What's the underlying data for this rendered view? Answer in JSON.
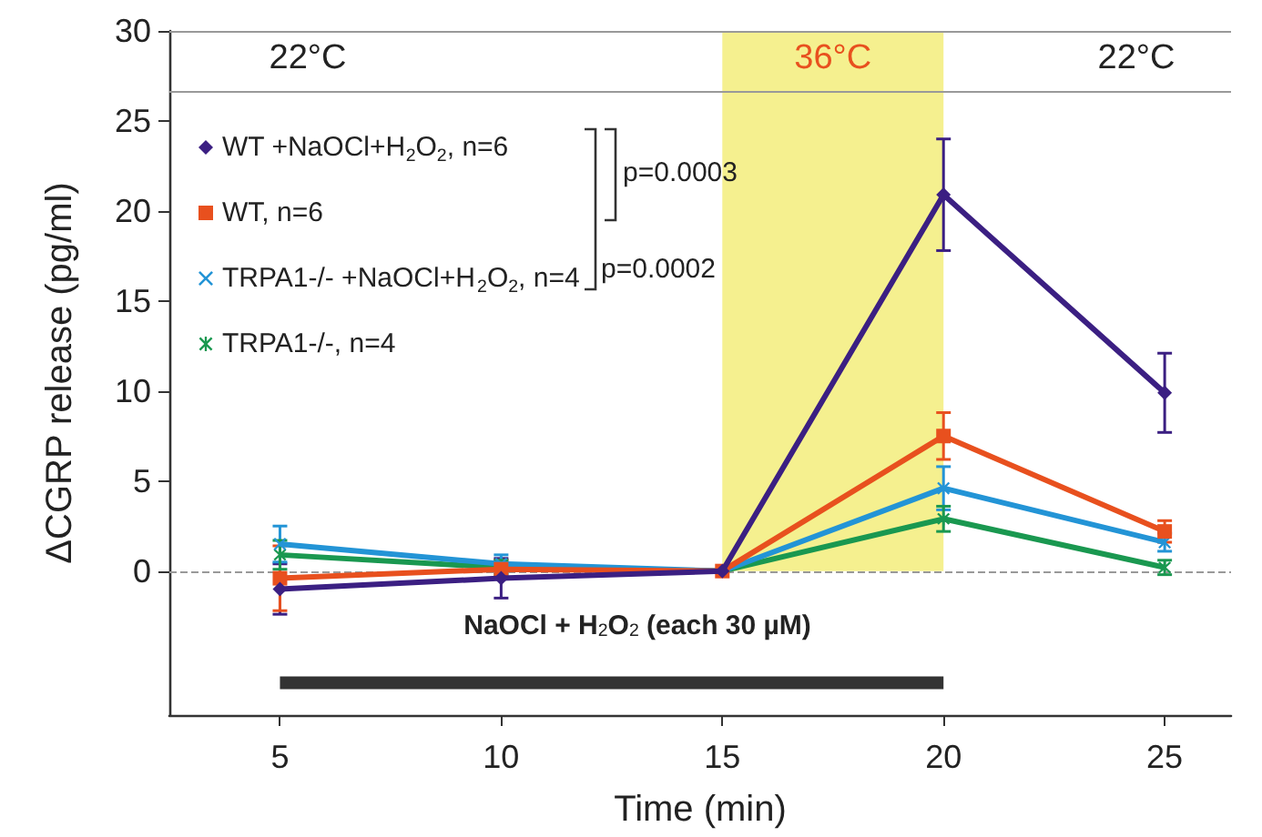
{
  "chart_data": {
    "type": "line",
    "xlabel": "Time (min)",
    "ylabel": "ΔCGRP release (pg/ml)",
    "x": [
      5,
      10,
      15,
      20,
      25
    ],
    "series": [
      {
        "name": "WT +NaOCl+H$_{2}$O$_{2}$, n=6",
        "color": "#3b1f82",
        "marker": "diamond",
        "values": [
          -1.0,
          -0.4,
          0,
          20.9,
          9.9
        ],
        "errors": [
          1.4,
          1.1,
          null,
          3.1,
          2.2
        ]
      },
      {
        "name": "WT, n=6",
        "color": "#e8501e",
        "marker": "square",
        "values": [
          -0.4,
          0.1,
          0,
          7.5,
          2.2
        ],
        "errors": [
          1.8,
          0.5,
          null,
          1.3,
          0.6
        ]
      },
      {
        "name": "TRPA1-/- +NaOCl+H$_{2}$O$_{2}$, n=4",
        "color": "#2394d6",
        "marker": "cross",
        "values": [
          1.5,
          0.4,
          0,
          4.6,
          1.6
        ],
        "errors": [
          1.0,
          0.5,
          null,
          1.2,
          0.5
        ]
      },
      {
        "name": "TRPA1-/-, n=4",
        "color": "#1a9850",
        "marker": "star",
        "values": [
          0.9,
          0.2,
          0,
          2.9,
          0.2
        ],
        "errors": [
          0.8,
          0.4,
          null,
          0.7,
          0.4
        ]
      },
      {
        "type": "line",
        "color": "#333333",
        "marker": "none",
        "x": [
          5,
          20
        ],
        "values": [
          -6.2,
          -6.2
        ]
      }
    ],
    "xlim": [
      2.5,
      26.5
    ],
    "xticks": [
      5,
      10,
      15,
      20,
      25
    ],
    "ylim": [
      -8,
      30
    ],
    "yticks": [
      0,
      5,
      10,
      15,
      20,
      25,
      30
    ],
    "legend": "top left",
    "ref_lines": [
      {
        "axis": "y",
        "value": 0,
        "line_style": "dashed",
        "color": "#999999"
      },
      {
        "axis": "y",
        "value": 26.6,
        "line_style": "solid",
        "color": "#999999"
      },
      {
        "axis": "y",
        "value": 30,
        "line_style": "solid",
        "color": "#999999"
      }
    ],
    "bands": [
      {
        "axis": "x",
        "from": 15,
        "to": 20,
        "label": "36°C",
        "color": "#f5f08f"
      }
    ],
    "annotations": [
      "22°C",
      "22°C",
      "NaOCl + H$_{2}$O$_{2}$ (each 30 µM)",
      "p=0.0003",
      "p=0.0002"
    ]
  }
}
